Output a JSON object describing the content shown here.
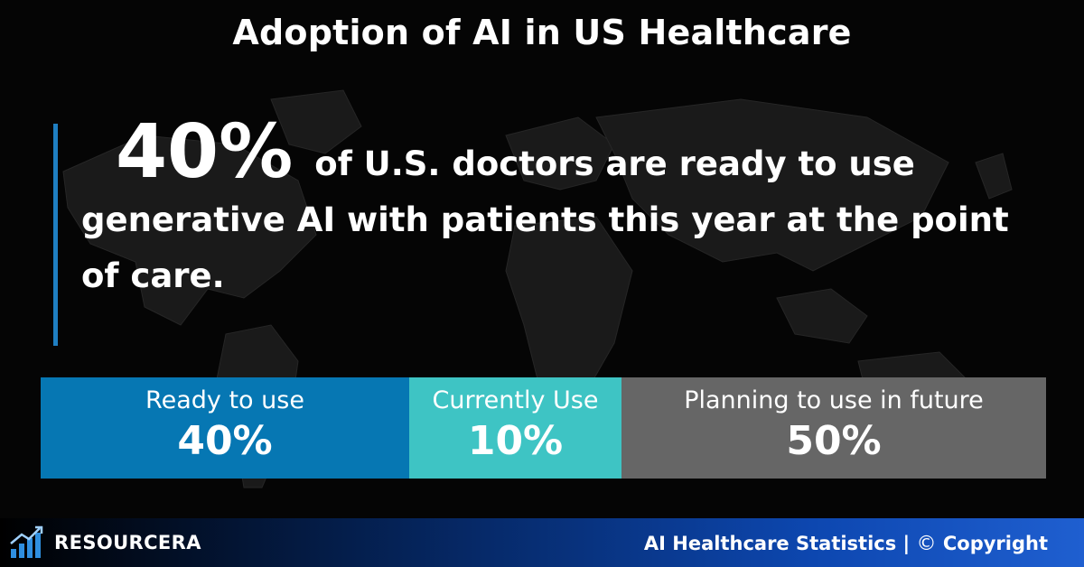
{
  "header": {
    "title": "Adoption of AI in US Healthcare"
  },
  "statement": {
    "highlight": "40%",
    "text": "of U.S. doctors are ready to use generative AI with patients this year at the point of care."
  },
  "chart_data": {
    "type": "bar",
    "stacked": true,
    "orientation": "horizontal",
    "categories": [
      "Ready to use",
      "Currently Use",
      "Planning to use in future"
    ],
    "values": [
      40,
      10,
      50
    ],
    "value_labels": [
      "40%",
      "10%",
      "50%"
    ],
    "unit": "%",
    "xlim": [
      0,
      100
    ],
    "colors": [
      "#0677b3",
      "#3ec4c4",
      "#666666"
    ],
    "grid": false,
    "legend": "none"
  },
  "footer": {
    "brand": "RESOURCERA",
    "logo_icon": "bar-chart-arrow-icon",
    "caption": "AI Healthcare Statistics |",
    "copyright_icon": "copyright-icon",
    "copyright_text": "Copyright"
  }
}
